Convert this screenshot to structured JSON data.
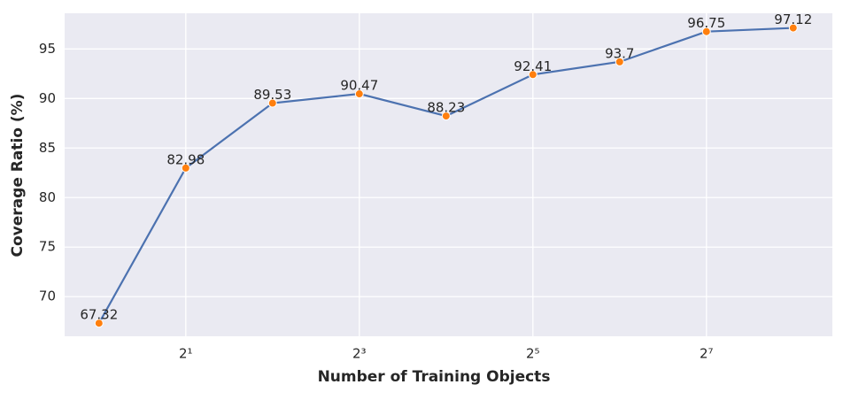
{
  "chart_data": {
    "type": "line",
    "xlabel": "Number of Training Objects",
    "ylabel": "Coverage Ratio (%)",
    "x": [
      1,
      2,
      4,
      8,
      16,
      32,
      64,
      128,
      256
    ],
    "series": [
      {
        "color": "#4c72b0",
        "marker_color": "#ff7f0e",
        "values": [
          67.32,
          82.98,
          89.53,
          90.47,
          88.23,
          92.41,
          93.7,
          96.75,
          97.12
        ]
      }
    ],
    "xscale": "log2",
    "xlim": [
      0.76,
      350
    ],
    "xticks": [
      {
        "value": 2,
        "label": "2¹"
      },
      {
        "value": 8,
        "label": "2³"
      },
      {
        "value": 32,
        "label": "2⁵"
      },
      {
        "value": 128,
        "label": "2⁷"
      }
    ],
    "ylim": [
      66,
      98.6
    ],
    "yticks": [
      70,
      75,
      80,
      85,
      90,
      95
    ],
    "grid": true
  }
}
